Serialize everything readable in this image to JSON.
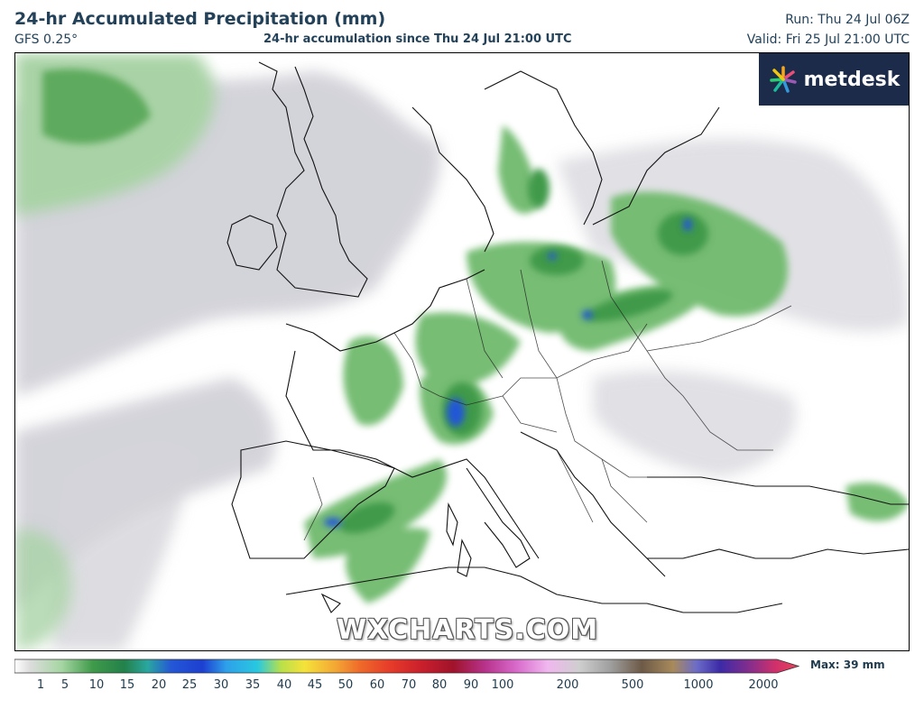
{
  "header": {
    "title": "24-hr Accumulated Precipitation (mm)",
    "model": "GFS 0.25°",
    "subtitle": "24-hr accumulation since Thu 24 Jul 21:00 UTC",
    "run": "Run: Thu 24 Jul 06Z",
    "valid": "Valid: Fri 25 Jul 21:00 UTC"
  },
  "logo": {
    "text": "metdesk",
    "icon": "star-burst-icon"
  },
  "watermark": "WXCHARTS.COM",
  "legend": {
    "max_label": "Max: 39 mm",
    "ticks": [
      "1",
      "5",
      "10",
      "15",
      "20",
      "25",
      "30",
      "35",
      "40",
      "45",
      "50",
      "60",
      "70",
      "80",
      "90",
      "100",
      "200",
      "500",
      "1000",
      "2000"
    ]
  },
  "colors": {
    "light_green": "#b7dcb4",
    "mid_green": "#5bb05c",
    "dark_green": "#2e8b3f",
    "blue": "#2457d6",
    "grey": "#cfcfd6",
    "logo_bg": "#1c2b4a"
  }
}
